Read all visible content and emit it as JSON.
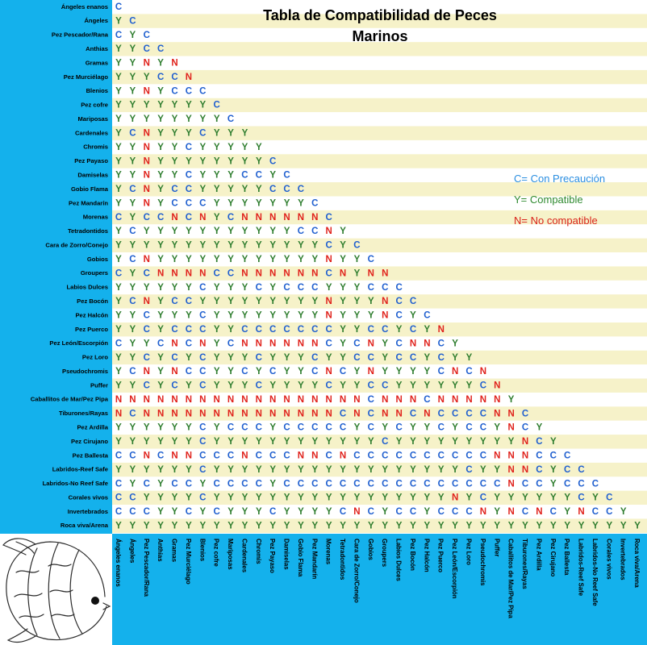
{
  "theme": {
    "panel": "#14b1ec",
    "stripe": "#ffffff",
    "stripe_alt": "#f6f2c9",
    "logo_bg": "#ffffff"
  },
  "chart_data": {
    "type": "table",
    "title_lines": [
      "Tabla de Compatibilidad de Peces",
      "Marinos"
    ],
    "legend": [
      {
        "text": "C= Con Precaución",
        "color": "#2a8ee0"
      },
      {
        "text": "Y= Compatible",
        "color": "#2f8a2f"
      },
      {
        "text": "N= No compatible",
        "color": "#d9241c"
      }
    ],
    "colors": {
      "C": "#1f5fcf",
      "Y": "#2e7d2e",
      "N": "#e0221c"
    },
    "species": [
      "Ángeles enanos",
      "Ángeles",
      "Pez Pescador/Rana",
      "Anthias",
      "Gramas",
      "Pez Murciélago",
      "Blenios",
      "Pez cofre",
      "Mariposas",
      "Cardenales",
      "Chromis",
      "Pez Payaso",
      "Damiselas",
      "Gobio Flama",
      "Pez Mandarín",
      "Morenas",
      "Tetradontidos",
      "Cara de Zorro/Conejo",
      "Gobios",
      "Groupers",
      "Labios Dulces",
      "Pez Bocón",
      "Pez Halcón",
      "Pez Puerco",
      "Pez León/Escorpión",
      "Pez Loro",
      "Pseudochromis",
      "Puffer",
      "Caballitos de Mar/Pez Pipa",
      "Tiburones/Rayas",
      "Pez Ardilla",
      "Pez Cirujano",
      "Pez Ballesta",
      "Labridos-Reef Safe",
      "Labridos-No Reef Safe",
      "Corales vivos",
      "Invertebrados",
      "Roca viva/Arena"
    ],
    "values": [
      [
        "C"
      ],
      [
        "Y",
        "C"
      ],
      [
        "C",
        "Y",
        "C"
      ],
      [
        "Y",
        "Y",
        "C",
        "C"
      ],
      [
        "Y",
        "Y",
        "N",
        "Y",
        "N"
      ],
      [
        "Y",
        "Y",
        "Y",
        "C",
        "C",
        "N"
      ],
      [
        "Y",
        "Y",
        "N",
        "Y",
        "C",
        "C",
        "C"
      ],
      [
        "Y",
        "Y",
        "Y",
        "Y",
        "Y",
        "Y",
        "Y",
        "C"
      ],
      [
        "Y",
        "Y",
        "Y",
        "Y",
        "Y",
        "Y",
        "Y",
        "Y",
        "C"
      ],
      [
        "Y",
        "C",
        "N",
        "Y",
        "Y",
        "Y",
        "C",
        "Y",
        "Y",
        "Y"
      ],
      [
        "Y",
        "Y",
        "N",
        "Y",
        "Y",
        "C",
        "Y",
        "Y",
        "Y",
        "Y",
        "Y"
      ],
      [
        "Y",
        "Y",
        "N",
        "Y",
        "Y",
        "Y",
        "Y",
        "Y",
        "Y",
        "Y",
        "Y",
        "C"
      ],
      [
        "Y",
        "Y",
        "N",
        "Y",
        "Y",
        "C",
        "Y",
        "Y",
        "Y",
        "C",
        "C",
        "Y",
        "C"
      ],
      [
        "Y",
        "C",
        "N",
        "Y",
        "C",
        "C",
        "Y",
        "Y",
        "Y",
        "Y",
        "Y",
        "C",
        "C",
        "C"
      ],
      [
        "Y",
        "Y",
        "N",
        "Y",
        "C",
        "C",
        "C",
        "Y",
        "Y",
        "Y",
        "Y",
        "Y",
        "Y",
        "Y",
        "C"
      ],
      [
        "C",
        "Y",
        "C",
        "C",
        "N",
        "C",
        "N",
        "Y",
        "C",
        "N",
        "N",
        "N",
        "N",
        "N",
        "N",
        "C"
      ],
      [
        "Y",
        "C",
        "Y",
        "Y",
        "Y",
        "Y",
        "Y",
        "Y",
        "Y",
        "Y",
        "Y",
        "Y",
        "Y",
        "C",
        "C",
        "N",
        "Y"
      ],
      [
        "Y",
        "Y",
        "Y",
        "Y",
        "Y",
        "Y",
        "Y",
        "Y",
        "Y",
        "Y",
        "Y",
        "Y",
        "Y",
        "Y",
        "Y",
        "C",
        "Y",
        "C"
      ],
      [
        "Y",
        "C",
        "N",
        "Y",
        "Y",
        "Y",
        "Y",
        "Y",
        "Y",
        "Y",
        "Y",
        "Y",
        "Y",
        "Y",
        "Y",
        "N",
        "Y",
        "Y",
        "C"
      ],
      [
        "C",
        "Y",
        "C",
        "N",
        "N",
        "N",
        "N",
        "C",
        "C",
        "N",
        "N",
        "N",
        "N",
        "N",
        "N",
        "C",
        "N",
        "Y",
        "N",
        "N"
      ],
      [
        "Y",
        "Y",
        "Y",
        "Y",
        "Y",
        "Y",
        "C",
        "Y",
        "Y",
        "Y",
        "C",
        "Y",
        "C",
        "C",
        "C",
        "Y",
        "Y",
        "Y",
        "C",
        "C",
        "C"
      ],
      [
        "Y",
        "C",
        "N",
        "Y",
        "C",
        "C",
        "Y",
        "Y",
        "Y",
        "Y",
        "Y",
        "Y",
        "Y",
        "Y",
        "Y",
        "N",
        "Y",
        "Y",
        "Y",
        "N",
        "C",
        "C"
      ],
      [
        "Y",
        "Y",
        "C",
        "Y",
        "Y",
        "Y",
        "C",
        "Y",
        "Y",
        "Y",
        "Y",
        "Y",
        "Y",
        "Y",
        "Y",
        "N",
        "Y",
        "Y",
        "Y",
        "N",
        "C",
        "Y",
        "C"
      ],
      [
        "Y",
        "Y",
        "C",
        "Y",
        "C",
        "C",
        "C",
        "Y",
        "Y",
        "C",
        "C",
        "C",
        "C",
        "C",
        "C",
        "C",
        "Y",
        "Y",
        "C",
        "C",
        "Y",
        "C",
        "Y",
        "N"
      ],
      [
        "C",
        "Y",
        "Y",
        "C",
        "N",
        "C",
        "N",
        "Y",
        "C",
        "N",
        "N",
        "N",
        "N",
        "N",
        "N",
        "C",
        "Y",
        "C",
        "N",
        "Y",
        "C",
        "N",
        "N",
        "C",
        "Y"
      ],
      [
        "Y",
        "Y",
        "C",
        "Y",
        "C",
        "Y",
        "C",
        "Y",
        "Y",
        "Y",
        "C",
        "Y",
        "Y",
        "Y",
        "C",
        "Y",
        "Y",
        "C",
        "C",
        "Y",
        "C",
        "C",
        "Y",
        "C",
        "Y",
        "Y"
      ],
      [
        "Y",
        "C",
        "N",
        "Y",
        "N",
        "C",
        "C",
        "Y",
        "Y",
        "C",
        "Y",
        "C",
        "Y",
        "Y",
        "C",
        "N",
        "C",
        "Y",
        "N",
        "Y",
        "Y",
        "Y",
        "Y",
        "C",
        "N",
        "C",
        "N"
      ],
      [
        "Y",
        "Y",
        "C",
        "Y",
        "C",
        "Y",
        "C",
        "Y",
        "Y",
        "Y",
        "C",
        "Y",
        "Y",
        "Y",
        "Y",
        "C",
        "Y",
        "Y",
        "C",
        "C",
        "Y",
        "Y",
        "Y",
        "Y",
        "Y",
        "Y",
        "C",
        "N"
      ],
      [
        "N",
        "N",
        "N",
        "N",
        "N",
        "N",
        "N",
        "N",
        "N",
        "N",
        "N",
        "N",
        "N",
        "N",
        "N",
        "N",
        "N",
        "N",
        "C",
        "N",
        "N",
        "N",
        "C",
        "N",
        "N",
        "N",
        "N",
        "N",
        "Y"
      ],
      [
        "N",
        "C",
        "N",
        "N",
        "N",
        "N",
        "N",
        "N",
        "N",
        "N",
        "N",
        "N",
        "N",
        "N",
        "N",
        "N",
        "C",
        "N",
        "C",
        "N",
        "N",
        "C",
        "N",
        "C",
        "C",
        "C",
        "C",
        "N",
        "N",
        "C"
      ],
      [
        "Y",
        "Y",
        "Y",
        "Y",
        "Y",
        "Y",
        "C",
        "Y",
        "C",
        "C",
        "C",
        "Y",
        "C",
        "C",
        "C",
        "C",
        "C",
        "Y",
        "C",
        "Y",
        "C",
        "Y",
        "Y",
        "C",
        "Y",
        "C",
        "C",
        "Y",
        "N",
        "C",
        "Y"
      ],
      [
        "Y",
        "Y",
        "Y",
        "Y",
        "Y",
        "Y",
        "C",
        "Y",
        "Y",
        "Y",
        "Y",
        "Y",
        "Y",
        "Y",
        "Y",
        "Y",
        "Y",
        "Y",
        "Y",
        "C",
        "Y",
        "Y",
        "Y",
        "Y",
        "Y",
        "Y",
        "Y",
        "Y",
        "Y",
        "N",
        "C",
        "Y"
      ],
      [
        "C",
        "C",
        "N",
        "C",
        "N",
        "N",
        "C",
        "C",
        "C",
        "N",
        "C",
        "C",
        "C",
        "N",
        "N",
        "C",
        "N",
        "C",
        "C",
        "C",
        "C",
        "C",
        "C",
        "C",
        "C",
        "C",
        "C",
        "N",
        "N",
        "N",
        "C",
        "C",
        "C"
      ],
      [
        "Y",
        "Y",
        "Y",
        "Y",
        "Y",
        "Y",
        "C",
        "Y",
        "Y",
        "Y",
        "Y",
        "Y",
        "Y",
        "Y",
        "Y",
        "Y",
        "Y",
        "Y",
        "Y",
        "Y",
        "Y",
        "Y",
        "Y",
        "Y",
        "Y",
        "C",
        "Y",
        "Y",
        "N",
        "N",
        "C",
        "Y",
        "C",
        "C"
      ],
      [
        "C",
        "Y",
        "C",
        "Y",
        "C",
        "C",
        "Y",
        "C",
        "C",
        "C",
        "C",
        "Y",
        "C",
        "C",
        "C",
        "C",
        "C",
        "C",
        "C",
        "C",
        "C",
        "C",
        "C",
        "C",
        "C",
        "C",
        "C",
        "C",
        "N",
        "C",
        "C",
        "Y",
        "C",
        "C",
        "C"
      ],
      [
        "C",
        "C",
        "Y",
        "Y",
        "Y",
        "Y",
        "C",
        "Y",
        "Y",
        "Y",
        "Y",
        "Y",
        "Y",
        "Y",
        "Y",
        "Y",
        "Y",
        "Y",
        "Y",
        "Y",
        "Y",
        "Y",
        "Y",
        "Y",
        "N",
        "Y",
        "C",
        "Y",
        "Y",
        "Y",
        "Y",
        "Y",
        "Y",
        "C",
        "Y",
        "C"
      ],
      [
        "C",
        "C",
        "C",
        "Y",
        "Y",
        "C",
        "Y",
        "C",
        "Y",
        "Y",
        "Y",
        "C",
        "Y",
        "Y",
        "Y",
        "Y",
        "C",
        "N",
        "C",
        "Y",
        "C",
        "C",
        "Y",
        "C",
        "C",
        "C",
        "N",
        "Y",
        "N",
        "C",
        "N",
        "C",
        "Y",
        "N",
        "C",
        "C",
        "Y"
      ],
      [
        "Y",
        "Y",
        "Y",
        "Y",
        "Y",
        "Y",
        "Y",
        "Y",
        "Y",
        "Y",
        "Y",
        "Y",
        "Y",
        "Y",
        "Y",
        "Y",
        "Y",
        "Y",
        "Y",
        "Y",
        "Y",
        "Y",
        "Y",
        "Y",
        "Y",
        "Y",
        "Y",
        "Y",
        "Y",
        "Y",
        "Y",
        "Y",
        "Y",
        "Y",
        "Y",
        "Y",
        "Y",
        "Y"
      ]
    ]
  }
}
